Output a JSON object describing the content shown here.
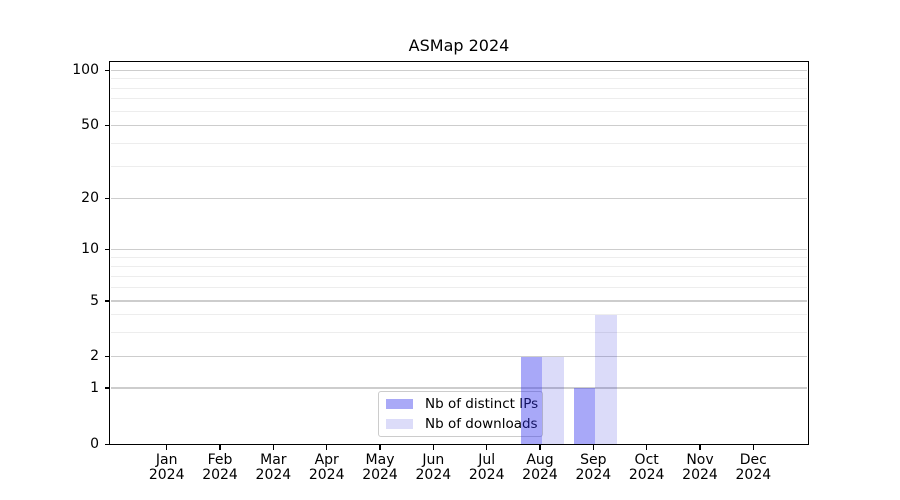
{
  "title": "ASMap 2024",
  "chart_data": {
    "type": "bar",
    "title": "ASMap 2024",
    "xlabel": "",
    "ylabel": "",
    "x_tick_months": [
      "Jan",
      "Feb",
      "Mar",
      "Apr",
      "May",
      "Jun",
      "Jul",
      "Aug",
      "Sep",
      "Oct",
      "Nov",
      "Dec"
    ],
    "x_tick_year": "2024",
    "categories": [
      "Jan 2024",
      "Feb 2024",
      "Mar 2024",
      "Apr 2024",
      "May 2024",
      "Jun 2024",
      "Jul 2024",
      "Aug 2024",
      "Sep 2024",
      "Oct 2024",
      "Nov 2024",
      "Dec 2024"
    ],
    "series": [
      {
        "name": "Nb of distinct IPs",
        "values": [
          0,
          0,
          0,
          0,
          0,
          0,
          0,
          2,
          1,
          0,
          0,
          0
        ],
        "fill_rgba": "rgba(47,47,239,0.42)",
        "swatch_hex": "#a9a9f7"
      },
      {
        "name": "Nb of downloads",
        "values": [
          0,
          0,
          0,
          0,
          0,
          0,
          0,
          2,
          4,
          0,
          0,
          0
        ],
        "fill_rgba": "rgba(8,8,216,0.145)",
        "swatch_hex": "#dcdcf9"
      }
    ],
    "y_axis": {
      "scale": "log-like with 0 baseline",
      "major_ticks": [
        0,
        1,
        2,
        5,
        10,
        20,
        50,
        100
      ],
      "minor_ticks": [
        3,
        4,
        6,
        7,
        8,
        9,
        30,
        40,
        60,
        70,
        80,
        90
      ],
      "ylim": [
        0,
        112
      ]
    },
    "grid": true,
    "legend_position": "lower center"
  }
}
